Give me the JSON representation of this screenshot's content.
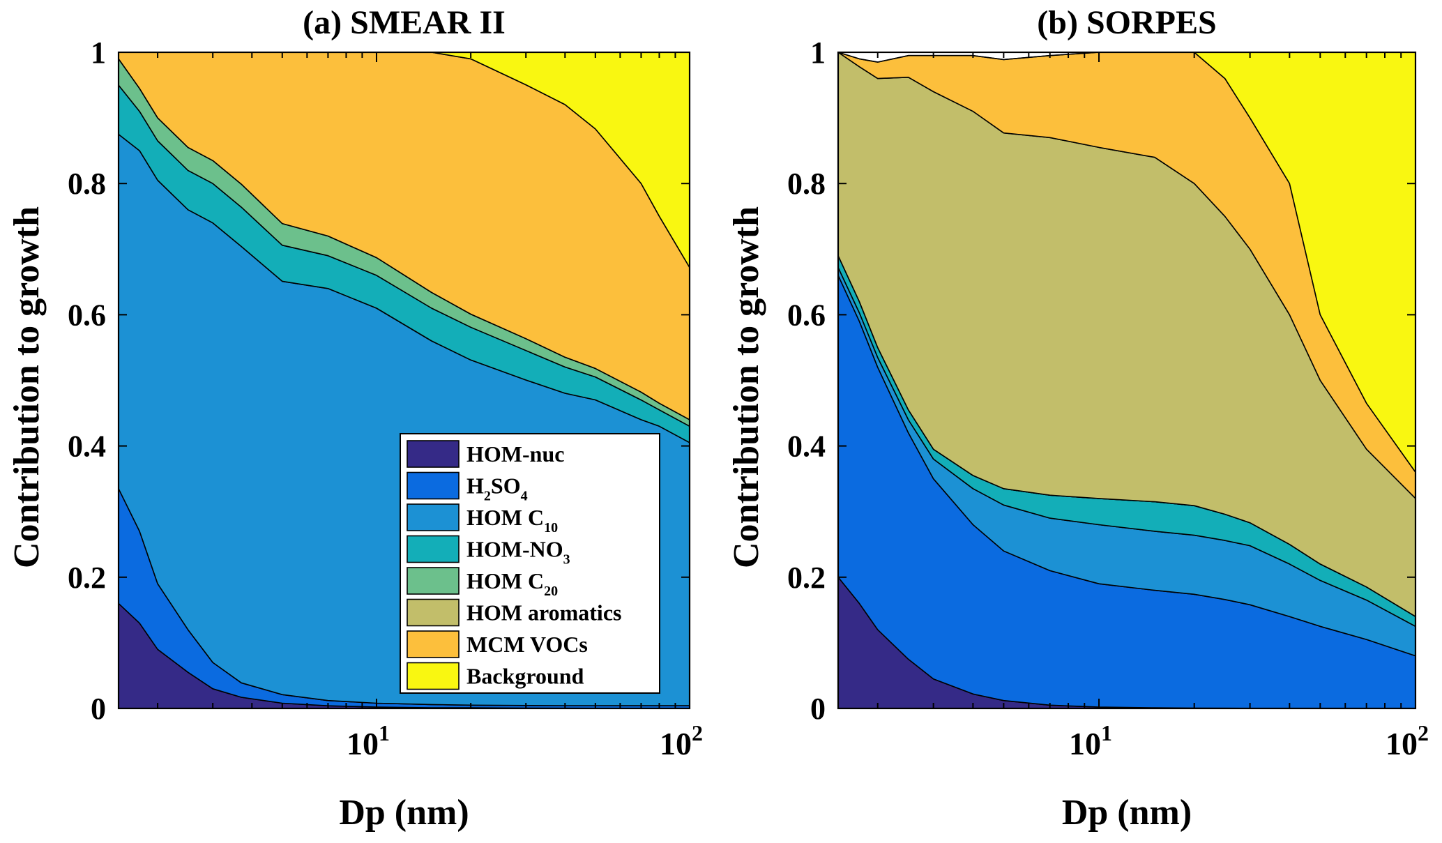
{
  "figure": {
    "panels": [
      {
        "title": "(a) SMEAR II",
        "ylabel": "Contribution to growth",
        "xlabel": "Dp (nm)"
      },
      {
        "title": "(b) SORPES",
        "ylabel": "Contribution to growth",
        "xlabel": "Dp (nm)"
      }
    ],
    "legend": {
      "placement": "inside lower-right of panel (a)",
      "entries": [
        {
          "label": "HOM-nuc",
          "color": "#352a87"
        },
        {
          "label": "H2SO4",
          "color": "#0b6be0"
        },
        {
          "label": "HOM C10",
          "color": "#1c91d4"
        },
        {
          "label": "HOM-NO3",
          "color": "#13aeb8"
        },
        {
          "label": "HOM C20",
          "color": "#6cc08c"
        },
        {
          "label": "HOM  aromatics",
          "color": "#c2be6a"
        },
        {
          "label": "MCM VOCs",
          "color": "#fcbf3c"
        },
        {
          "label": "Background",
          "color": "#f9f711"
        }
      ]
    }
  },
  "chart_data": [
    {
      "type": "area",
      "stacked": true,
      "title": "(a) SMEAR II",
      "xlabel": "Dp (nm)",
      "ylabel": "Contribution to growth",
      "xscale": "log",
      "xlim": [
        1.5,
        100
      ],
      "ylim": [
        0,
        1
      ],
      "yticks": [
        "0",
        "0.2",
        "0.4",
        "0.6",
        "0.8",
        "1"
      ],
      "xticks": [
        {
          "value": 10,
          "base": "10",
          "exp": "1"
        },
        {
          "value": 100,
          "base": "10",
          "exp": "2"
        }
      ],
      "x": [
        1.5,
        1.75,
        2,
        2.5,
        3,
        3.7,
        5,
        7,
        10,
        15,
        20,
        30,
        40,
        50,
        70,
        80,
        100
      ],
      "series": [
        {
          "name": "HOM-nuc",
          "color": "#352a87",
          "values": [
            0.16,
            0.13,
            0.09,
            0.055,
            0.03,
            0.017,
            0.008,
            0.004,
            0.002,
            0.001,
            0.001,
            0.0005,
            0.0003,
            0.0002,
            0.0001,
            0.0001,
            0.0001
          ]
        },
        {
          "name": "H2SO4",
          "color": "#0b6be0",
          "values": [
            0.175,
            0.14,
            0.1,
            0.065,
            0.04,
            0.022,
            0.013,
            0.008,
            0.006,
            0.005,
            0.004,
            0.004,
            0.004,
            0.004,
            0.004,
            0.004,
            0.004
          ]
        },
        {
          "name": "HOM C10",
          "color": "#1c91d4",
          "values": [
            0.54,
            0.58,
            0.615,
            0.64,
            0.67,
            0.665,
            0.63,
            0.628,
            0.602,
            0.554,
            0.526,
            0.496,
            0.476,
            0.466,
            0.436,
            0.426,
            0.401
          ]
        },
        {
          "name": "HOM-NO3",
          "color": "#13aeb8",
          "values": [
            0.075,
            0.06,
            0.06,
            0.06,
            0.06,
            0.06,
            0.055,
            0.05,
            0.05,
            0.05,
            0.05,
            0.045,
            0.04,
            0.035,
            0.03,
            0.025,
            0.025
          ]
        },
        {
          "name": "HOM C20",
          "color": "#6cc08c",
          "values": [
            0.04,
            0.035,
            0.035,
            0.035,
            0.035,
            0.035,
            0.033,
            0.03,
            0.027,
            0.024,
            0.02,
            0.018,
            0.015,
            0.013,
            0.012,
            0.01,
            0.01
          ]
        },
        {
          "name": "HOM  aromatics",
          "color": "#c2be6a",
          "values": [
            0,
            0,
            0,
            0,
            0,
            0,
            0,
            0,
            0,
            0,
            0,
            0,
            0,
            0,
            0,
            0,
            0
          ]
        },
        {
          "name": "MCM VOCs",
          "color": "#fcbf3c",
          "values": [
            0.01,
            0.055,
            0.1,
            0.145,
            0.195,
            0.201,
            0.261,
            0.28,
            0.313,
            0.366,
            0.389,
            0.387,
            0.385,
            0.365,
            0.318,
            0.285,
            0.232
          ]
        },
        {
          "name": "Background",
          "color": "#f9f711",
          "values": [
            0,
            0,
            0,
            0,
            0,
            0,
            0,
            0,
            0,
            0,
            0.01,
            0.05,
            0.08,
            0.117,
            0.2,
            0.25,
            0.328
          ]
        }
      ]
    },
    {
      "type": "area",
      "stacked": true,
      "title": "(b) SORPES",
      "xlabel": "Dp (nm)",
      "ylabel": "Contribution to growth",
      "xscale": "log",
      "xlim": [
        1.5,
        100
      ],
      "ylim": [
        0,
        1
      ],
      "yticks": [
        "0",
        "0.2",
        "0.4",
        "0.6",
        "0.8",
        "1"
      ],
      "xticks": [
        {
          "value": 10,
          "base": "10",
          "exp": "1"
        },
        {
          "value": 100,
          "base": "10",
          "exp": "2"
        }
      ],
      "x": [
        1.5,
        1.75,
        2,
        2.5,
        3,
        4,
        5,
        7,
        10,
        15,
        20,
        25,
        30,
        40,
        50,
        70,
        100
      ],
      "series": [
        {
          "name": "HOM-nuc",
          "color": "#352a87",
          "values": [
            0.2,
            0.16,
            0.12,
            0.075,
            0.045,
            0.022,
            0.012,
            0.005,
            0.002,
            0.001,
            0.0005,
            0.0003,
            0.0002,
            0.0001,
            0.0001,
            0.0001,
            0.0001
          ]
        },
        {
          "name": "H2SO4",
          "color": "#0b6be0",
          "values": [
            0.46,
            0.43,
            0.4,
            0.345,
            0.305,
            0.258,
            0.228,
            0.205,
            0.188,
            0.179,
            0.1735,
            0.1657,
            0.1578,
            0.14,
            0.125,
            0.105,
            0.08
          ]
        },
        {
          "name": "HOM C10",
          "color": "#1c91d4",
          "values": [
            0.012,
            0.013,
            0.015,
            0.02,
            0.03,
            0.055,
            0.07,
            0.08,
            0.09,
            0.09,
            0.09,
            0.09,
            0.09,
            0.08,
            0.07,
            0.06,
            0.045
          ]
        },
        {
          "name": "HOM-NO3",
          "color": "#13aeb8",
          "values": [
            0.018,
            0.017,
            0.015,
            0.015,
            0.015,
            0.02,
            0.025,
            0.035,
            0.04,
            0.045,
            0.045,
            0.04,
            0.035,
            0.03,
            0.025,
            0.02,
            0.015
          ]
        },
        {
          "name": "HOM C20",
          "color": "#6cc08c",
          "values": [
            0,
            0,
            0,
            0,
            0,
            0,
            0,
            0,
            0,
            0,
            0,
            0,
            0,
            0,
            0,
            0,
            0
          ]
        },
        {
          "name": "HOM  aromatics",
          "color": "#c2be6a",
          "values": [
            0.31,
            0.358,
            0.41,
            0.507,
            0.545,
            0.555,
            0.542,
            0.545,
            0.535,
            0.525,
            0.491,
            0.454,
            0.417,
            0.35,
            0.28,
            0.21,
            0.18
          ]
        },
        {
          "name": "MCM VOCs",
          "color": "#fcbf3c",
          "values": [
            0,
            0.012,
            0.025,
            0.033,
            0.055,
            0.085,
            0.112,
            0.125,
            0.145,
            0.16,
            0.2,
            0.21,
            0.2,
            0.2,
            0.1,
            0.07,
            0.04
          ]
        },
        {
          "name": "Background",
          "color": "#f9f711",
          "values": [
            0,
            0,
            0,
            0,
            0,
            0,
            0,
            0,
            0,
            0,
            0,
            0.04,
            0.1,
            0.2,
            0.4,
            0.535,
            0.64
          ]
        }
      ]
    }
  ]
}
